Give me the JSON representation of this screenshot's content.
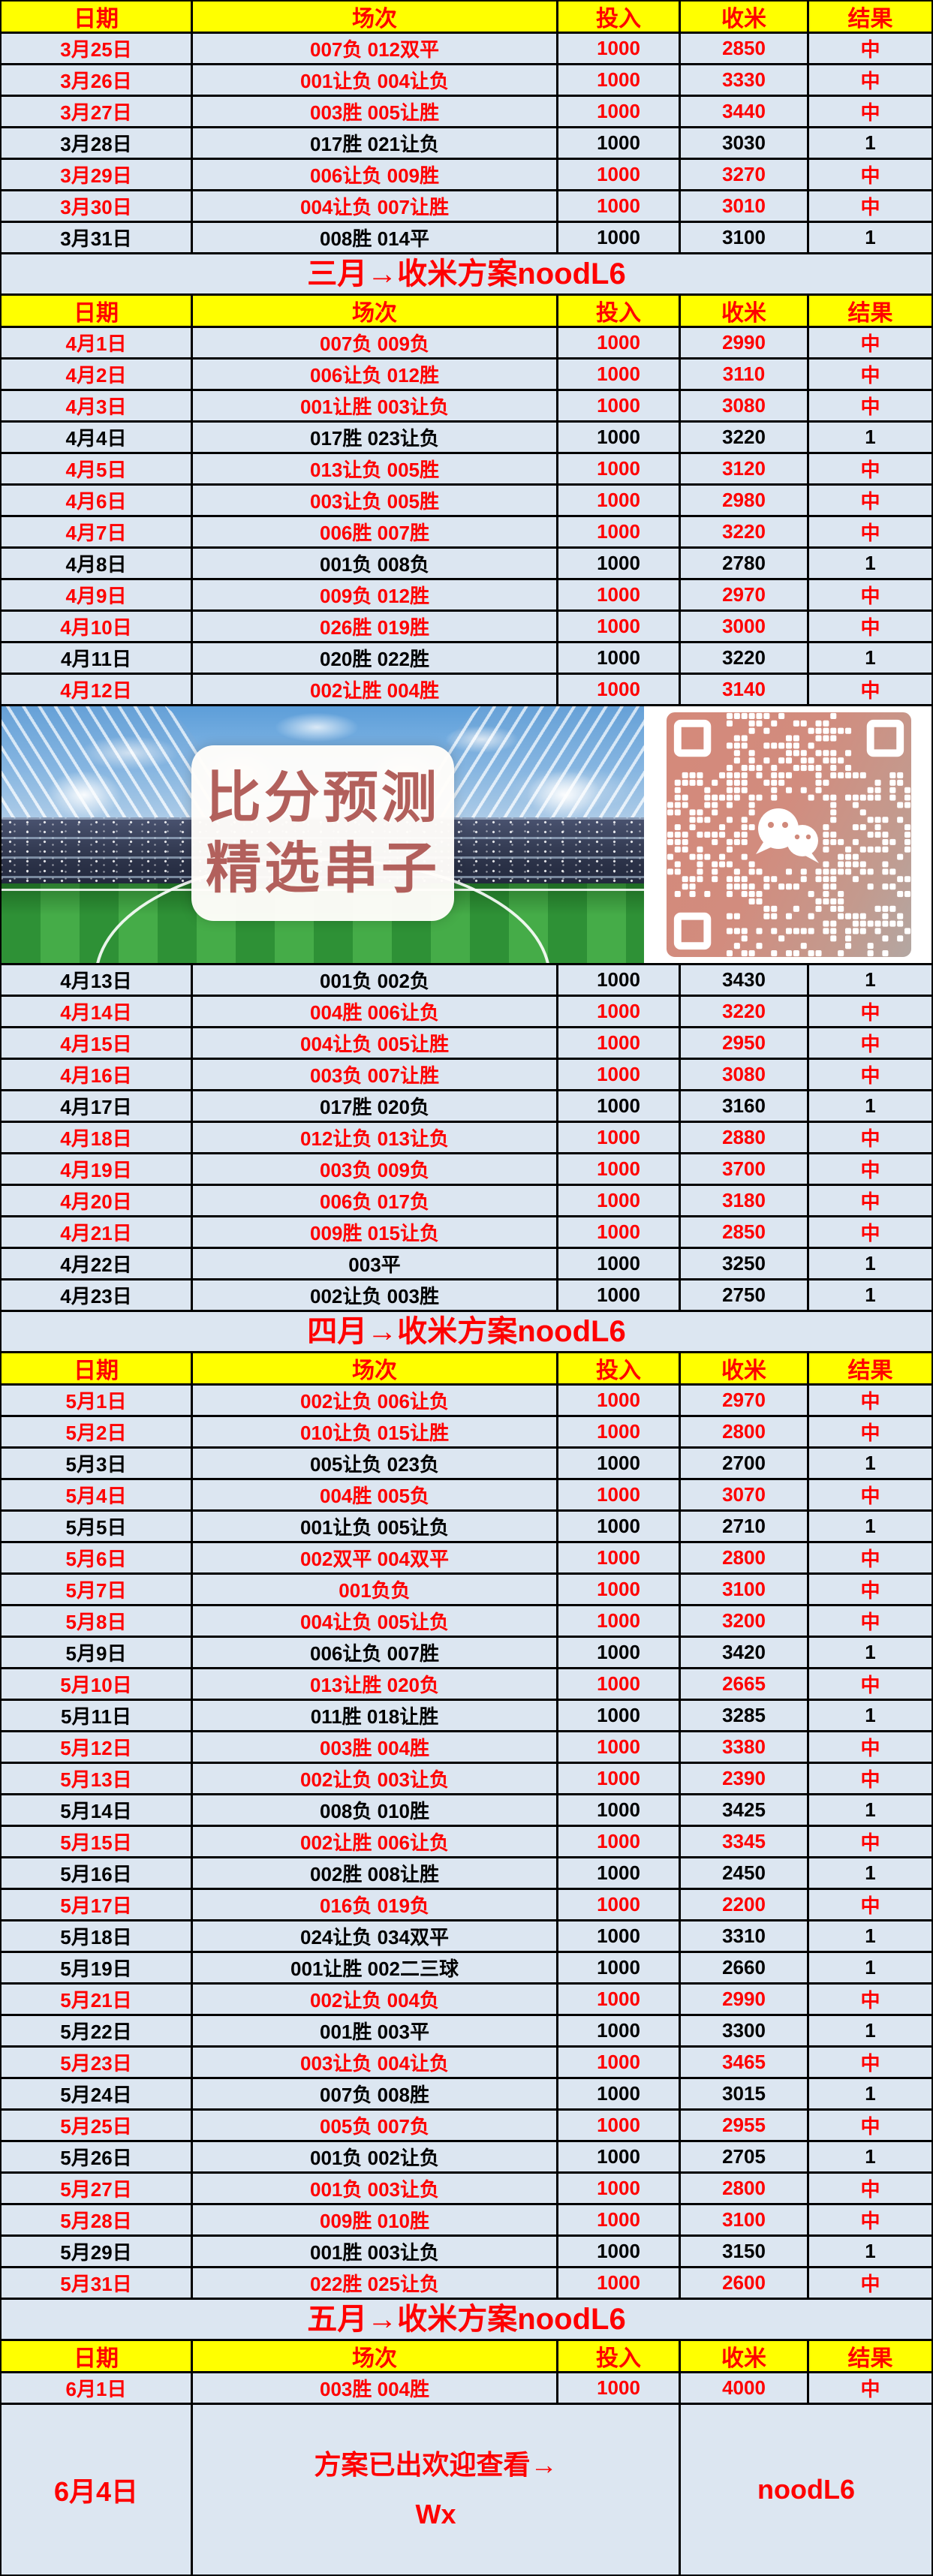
{
  "banner": {
    "title_line1": "比分预测",
    "title_line2": "精选串子",
    "qr_label": "wechat-qr-code"
  },
  "colors": {
    "page_bg": "#dce6f1",
    "header_bg": "#ffff00",
    "hit_text": "#ff0000",
    "miss_text": "#000000",
    "border": "#000000",
    "qr_salmon": "#d4897a",
    "banner_title_text": "#b2605c"
  },
  "table": {
    "columns": [
      "日期",
      "场次",
      "投入",
      "收米",
      "结果"
    ],
    "sections": [
      {
        "type": "column_header"
      },
      {
        "type": "rows",
        "rows": [
          {
            "date": "3月25日",
            "matches": "007负 012双平",
            "stake": "1000",
            "return": "2850",
            "result": "中"
          },
          {
            "date": "3月26日",
            "matches": "001让负 004让负",
            "stake": "1000",
            "return": "3330",
            "result": "中"
          },
          {
            "date": "3月27日",
            "matches": "003胜 005让胜",
            "stake": "1000",
            "return": "3440",
            "result": "中"
          },
          {
            "date": "3月28日",
            "matches": "017胜 021让负",
            "stake": "1000",
            "return": "3030",
            "result": "1"
          },
          {
            "date": "3月29日",
            "matches": "006让负 009胜",
            "stake": "1000",
            "return": "3270",
            "result": "中"
          },
          {
            "date": "3月30日",
            "matches": "004让负 007让胜",
            "stake": "1000",
            "return": "3010",
            "result": "中"
          },
          {
            "date": "3月31日",
            "matches": "008胜 014平",
            "stake": "1000",
            "return": "3100",
            "result": "1"
          }
        ]
      },
      {
        "type": "month_banner",
        "label": "三月→收米方案noodL6"
      },
      {
        "type": "column_header"
      },
      {
        "type": "rows",
        "rows": [
          {
            "date": "4月1日",
            "matches": "007负 009负",
            "stake": "1000",
            "return": "2990",
            "result": "中"
          },
          {
            "date": "4月2日",
            "matches": "006让负 012胜",
            "stake": "1000",
            "return": "3110",
            "result": "中"
          },
          {
            "date": "4月3日",
            "matches": "001让胜 003让负",
            "stake": "1000",
            "return": "3080",
            "result": "中"
          },
          {
            "date": "4月4日",
            "matches": "017胜 023让负",
            "stake": "1000",
            "return": "3220",
            "result": "1"
          },
          {
            "date": "4月5日",
            "matches": "013让负 005胜",
            "stake": "1000",
            "return": "3120",
            "result": "中"
          },
          {
            "date": "4月6日",
            "matches": "003让负 005胜",
            "stake": "1000",
            "return": "2980",
            "result": "中"
          },
          {
            "date": "4月7日",
            "matches": "006胜 007胜",
            "stake": "1000",
            "return": "3220",
            "result": "中"
          },
          {
            "date": "4月8日",
            "matches": "001负 008负",
            "stake": "1000",
            "return": "2780",
            "result": "1"
          },
          {
            "date": "4月9日",
            "matches": "009负 012胜",
            "stake": "1000",
            "return": "2970",
            "result": "中"
          },
          {
            "date": "4月10日",
            "matches": "026胜 019胜",
            "stake": "1000",
            "return": "3000",
            "result": "中"
          },
          {
            "date": "4月11日",
            "matches": "020胜 022胜",
            "stake": "1000",
            "return": "3220",
            "result": "1"
          },
          {
            "date": "4月12日",
            "matches": "002让胜 004胜",
            "stake": "1000",
            "return": "3140",
            "result": "中"
          }
        ]
      },
      {
        "type": "image_banner"
      },
      {
        "type": "rows",
        "rows": [
          {
            "date": "4月13日",
            "matches": "001负 002负",
            "stake": "1000",
            "return": "3430",
            "result": "1"
          },
          {
            "date": "4月14日",
            "matches": "004胜 006让负",
            "stake": "1000",
            "return": "3220",
            "result": "中"
          },
          {
            "date": "4月15日",
            "matches": "004让负 005让胜",
            "stake": "1000",
            "return": "2950",
            "result": "中"
          },
          {
            "date": "4月16日",
            "matches": "003负 007让胜",
            "stake": "1000",
            "return": "3080",
            "result": "中"
          },
          {
            "date": "4月17日",
            "matches": "017胜 020负",
            "stake": "1000",
            "return": "3160",
            "result": "1"
          },
          {
            "date": "4月18日",
            "matches": "012让负 013让负",
            "stake": "1000",
            "return": "2880",
            "result": "中"
          },
          {
            "date": "4月19日",
            "matches": "003负 009负",
            "stake": "1000",
            "return": "3700",
            "result": "中"
          },
          {
            "date": "4月20日",
            "matches": "006负 017负",
            "stake": "1000",
            "return": "3180",
            "result": "中"
          },
          {
            "date": "4月21日",
            "matches": "009胜 015让负",
            "stake": "1000",
            "return": "2850",
            "result": "中"
          },
          {
            "date": "4月22日",
            "matches": "003平",
            "stake": "1000",
            "return": "3250",
            "result": "1"
          },
          {
            "date": "4月23日",
            "matches": "002让负 003胜",
            "stake": "1000",
            "return": "2750",
            "result": "1"
          }
        ]
      },
      {
        "type": "month_banner",
        "label": "四月→收米方案noodL6"
      },
      {
        "type": "column_header"
      },
      {
        "type": "rows",
        "rows": [
          {
            "date": "5月1日",
            "matches": "002让负 006让负",
            "stake": "1000",
            "return": "2970",
            "result": "中"
          },
          {
            "date": "5月2日",
            "matches": "010让负 015让胜",
            "stake": "1000",
            "return": "2800",
            "result": "中"
          },
          {
            "date": "5月3日",
            "matches": "005让负 023负",
            "stake": "1000",
            "return": "2700",
            "result": "1"
          },
          {
            "date": "5月4日",
            "matches": "004胜 005负",
            "stake": "1000",
            "return": "3070",
            "result": "中"
          },
          {
            "date": "5月5日",
            "matches": "001让负 005让负",
            "stake": "1000",
            "return": "2710",
            "result": "1"
          },
          {
            "date": "5月6日",
            "matches": "002双平 004双平",
            "stake": "1000",
            "return": "2800",
            "result": "中"
          },
          {
            "date": "5月7日",
            "matches": "001负负",
            "stake": "1000",
            "return": "3100",
            "result": "中"
          },
          {
            "date": "5月8日",
            "matches": "004让负 005让负",
            "stake": "1000",
            "return": "3200",
            "result": "中"
          },
          {
            "date": "5月9日",
            "matches": "006让负 007胜",
            "stake": "1000",
            "return": "3420",
            "result": "1"
          },
          {
            "date": "5月10日",
            "matches": "013让胜 020负",
            "stake": "1000",
            "return": "2665",
            "result": "中"
          },
          {
            "date": "5月11日",
            "matches": "011胜 018让胜",
            "stake": "1000",
            "return": "3285",
            "result": "1"
          },
          {
            "date": "5月12日",
            "matches": "003胜 004胜",
            "stake": "1000",
            "return": "3380",
            "result": "中"
          },
          {
            "date": "5月13日",
            "matches": "002让负 003让负",
            "stake": "1000",
            "return": "2390",
            "result": "中"
          },
          {
            "date": "5月14日",
            "matches": "008负 010胜",
            "stake": "1000",
            "return": "3425",
            "result": "1"
          },
          {
            "date": "5月15日",
            "matches": "002让胜 006让负",
            "stake": "1000",
            "return": "3345",
            "result": "中"
          },
          {
            "date": "5月16日",
            "matches": "002胜 008让胜",
            "stake": "1000",
            "return": "2450",
            "result": "1"
          },
          {
            "date": "5月17日",
            "matches": "016负 019负",
            "stake": "1000",
            "return": "2200",
            "result": "中"
          },
          {
            "date": "5月18日",
            "matches": "024让负 034双平",
            "stake": "1000",
            "return": "3310",
            "result": "1"
          },
          {
            "date": "5月19日",
            "matches": "001让胜 002二三球",
            "stake": "1000",
            "return": "2660",
            "result": "1"
          },
          {
            "date": "5月21日",
            "matches": "002让负 004负",
            "stake": "1000",
            "return": "2990",
            "result": "中"
          },
          {
            "date": "5月22日",
            "matches": "001胜 003平",
            "stake": "1000",
            "return": "3300",
            "result": "1"
          },
          {
            "date": "5月23日",
            "matches": "003让负 004让负",
            "stake": "1000",
            "return": "3465",
            "result": "中"
          },
          {
            "date": "5月24日",
            "matches": "007负 008胜",
            "stake": "1000",
            "return": "3015",
            "result": "1"
          },
          {
            "date": "5月25日",
            "matches": "005负 007负",
            "stake": "1000",
            "return": "2955",
            "result": "中"
          },
          {
            "date": "5月26日",
            "matches": "001负 002让负",
            "stake": "1000",
            "return": "2705",
            "result": "1"
          },
          {
            "date": "5月27日",
            "matches": "001负 003让负",
            "stake": "1000",
            "return": "2800",
            "result": "中"
          },
          {
            "date": "5月28日",
            "matches": "009胜 010胜",
            "stake": "1000",
            "return": "3100",
            "result": "中"
          },
          {
            "date": "5月29日",
            "matches": "001胜 003让负",
            "stake": "1000",
            "return": "3150",
            "result": "1"
          },
          {
            "date": "5月31日",
            "matches": "022胜 025让负",
            "stake": "1000",
            "return": "2600",
            "result": "中"
          }
        ]
      },
      {
        "type": "month_banner",
        "label": "五月→收米方案noodL6"
      },
      {
        "type": "column_header"
      },
      {
        "type": "rows",
        "rows": [
          {
            "date": "6月1日",
            "matches": "003胜 004胜",
            "stake": "1000",
            "return": "4000",
            "result": "中"
          }
        ]
      },
      {
        "type": "tall_row",
        "date": "6月4日",
        "message_line1": "方案已出欢迎查看→",
        "message_line2": "Wx",
        "plan_label": "noodL6"
      }
    ]
  }
}
